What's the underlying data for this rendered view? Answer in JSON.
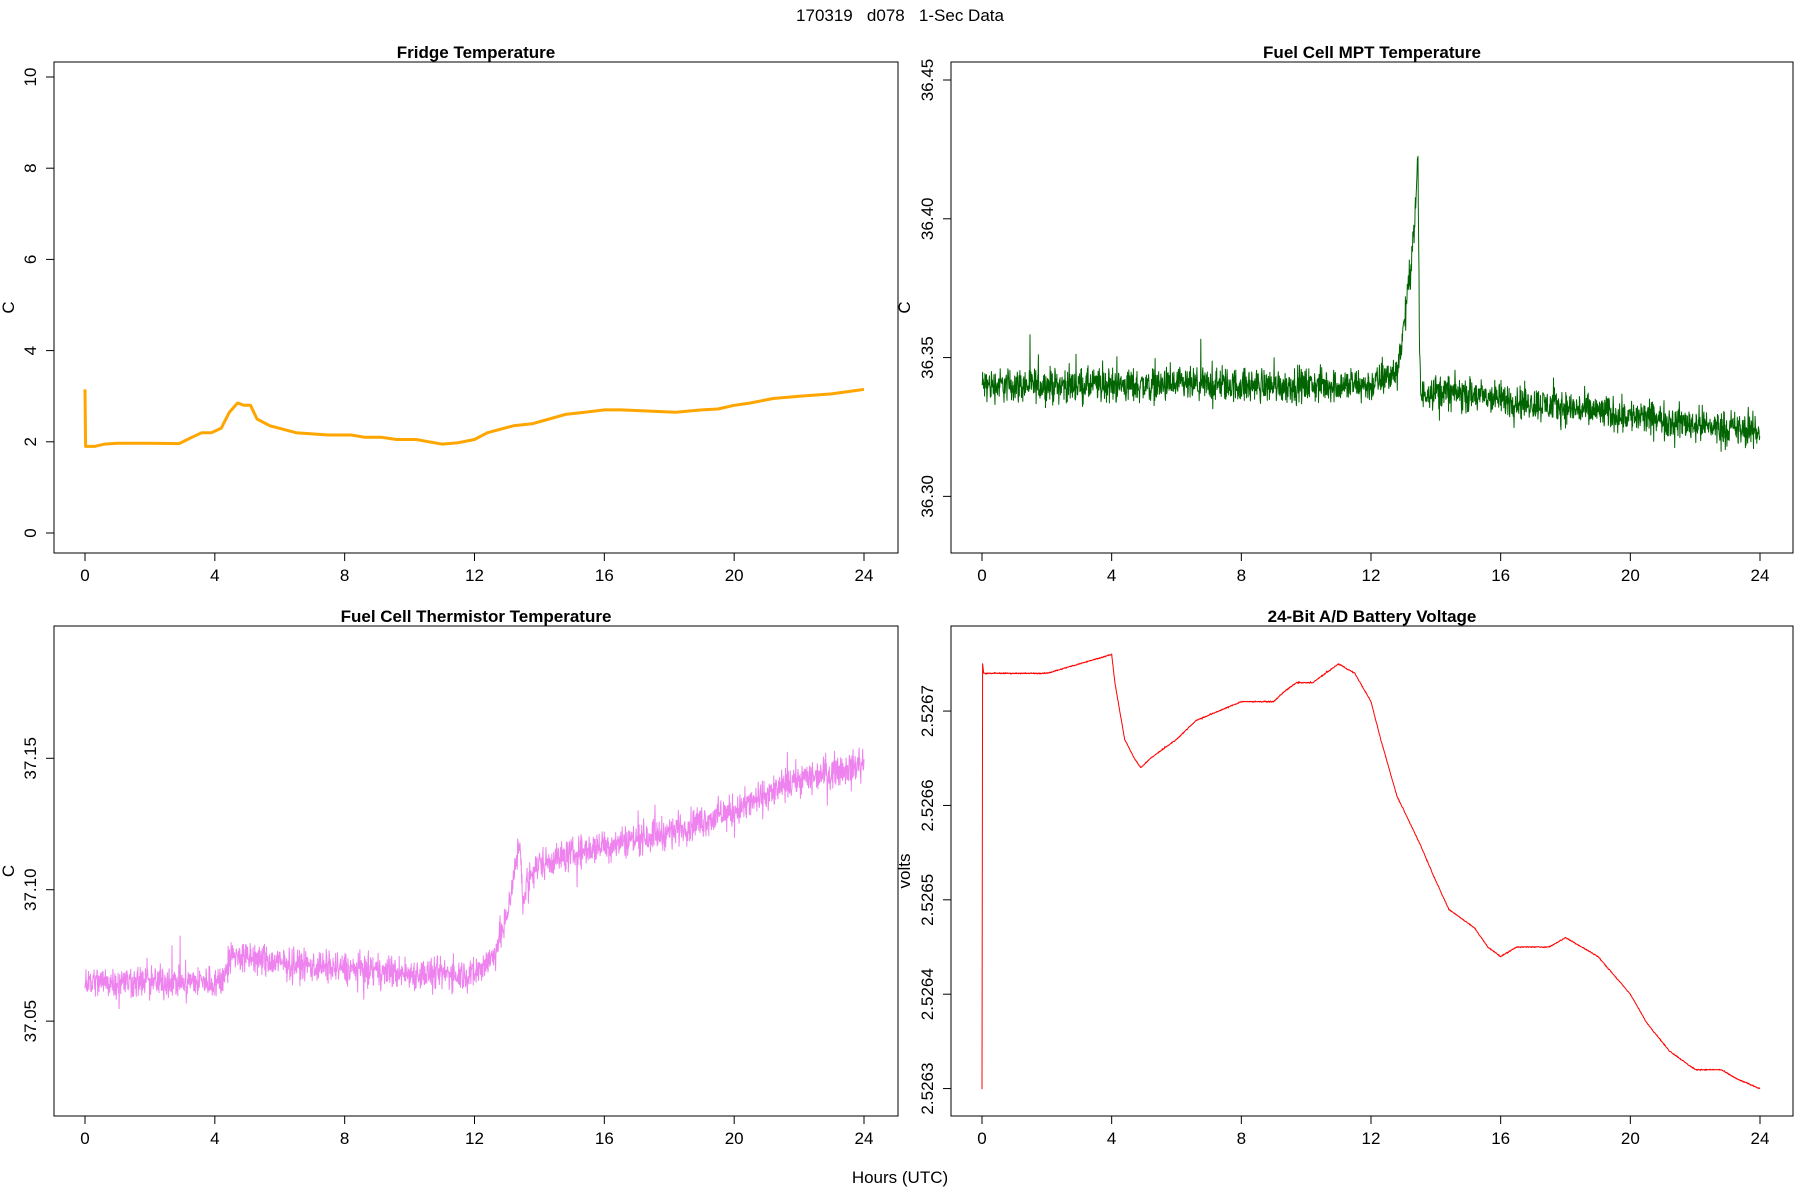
{
  "page_title": "170319   d078   1-Sec Data",
  "x_axis_label": "Hours (UTC)",
  "chart_data": [
    {
      "type": "line",
      "title": "Fridge Temperature",
      "ylabel": "C",
      "xlabel": "",
      "xlim": [
        0,
        24
      ],
      "ylim": [
        0,
        10
      ],
      "x_ticks": [
        0,
        4,
        8,
        12,
        16,
        20,
        24
      ],
      "y_ticks": [
        "0",
        "2",
        "4",
        "6",
        "8",
        "10"
      ],
      "y_tick_values": [
        0,
        2,
        4,
        6,
        8,
        10
      ],
      "color": "#FFA500",
      "series": [
        {
          "x": [
            0,
            0.02,
            0.04,
            0.3,
            0.6,
            1,
            2,
            2.9,
            3.3,
            3.6,
            3.9,
            4.2,
            4.45,
            4.7,
            4.9,
            5.1,
            5.3,
            5.7,
            6.5,
            7.5,
            8.2,
            8.6,
            9.1,
            9.6,
            10.2,
            10.6,
            11,
            11.5,
            12,
            12.4,
            13.2,
            13.8,
            14.3,
            14.8,
            15.4,
            16,
            16.5,
            17.5,
            18.2,
            19,
            19.5,
            20,
            20.5,
            21.2,
            22,
            23,
            23.5,
            24
          ],
          "y": [
            3.15,
            1.9,
            1.9,
            1.9,
            1.95,
            1.97,
            1.97,
            1.96,
            2.1,
            2.2,
            2.2,
            2.3,
            2.65,
            2.85,
            2.8,
            2.8,
            2.5,
            2.35,
            2.2,
            2.15,
            2.15,
            2.1,
            2.1,
            2.05,
            2.05,
            2.0,
            1.95,
            1.98,
            2.05,
            2.2,
            2.35,
            2.4,
            2.5,
            2.6,
            2.65,
            2.7,
            2.7,
            2.67,
            2.65,
            2.7,
            2.72,
            2.8,
            2.85,
            2.95,
            3.0,
            3.05,
            3.1,
            3.15
          ]
        }
      ],
      "noise": 0
    },
    {
      "type": "line",
      "title": "Fuel Cell MPT Temperature",
      "ylabel": "C",
      "xlabel": "",
      "xlim": [
        0,
        24
      ],
      "ylim": [
        36.285,
        36.45
      ],
      "x_ticks": [
        0,
        4,
        8,
        12,
        16,
        20,
        24
      ],
      "y_ticks": [
        "36.30",
        "36.35",
        "36.40",
        "36.45"
      ],
      "y_tick_values": [
        36.3,
        36.35,
        36.4,
        36.45
      ],
      "color": "#006400",
      "series": [
        {
          "x": [
            0,
            2,
            4,
            6,
            8,
            10,
            12,
            12.8,
            13.0,
            13.2,
            13.35,
            13.45,
            13.5,
            13.55,
            13.7,
            14,
            16,
            18,
            20,
            22,
            24
          ],
          "y": [
            36.34,
            36.34,
            36.34,
            36.34,
            36.34,
            36.34,
            36.34,
            36.345,
            36.36,
            36.38,
            36.4,
            36.42,
            36.35,
            36.335,
            36.338,
            36.338,
            36.335,
            36.332,
            36.329,
            36.326,
            36.323
          ]
        }
      ],
      "noise": 0.009
    },
    {
      "type": "line",
      "title": "Fuel Cell Thermistor Temperature",
      "ylabel": "C",
      "xlabel": "",
      "xlim": [
        0,
        24
      ],
      "ylim": [
        37.02,
        37.195
      ],
      "x_ticks": [
        0,
        4,
        8,
        12,
        16,
        20,
        24
      ],
      "y_ticks": [
        "37.05",
        "37.10",
        "37.15"
      ],
      "y_tick_values": [
        37.05,
        37.1,
        37.15
      ],
      "color": "#EE82EE",
      "series": [
        {
          "x": [
            0,
            1,
            2,
            3,
            4.2,
            4.5,
            6,
            8,
            10,
            12,
            12.6,
            13.0,
            13.2,
            13.4,
            13.5,
            13.7,
            14,
            16,
            18,
            20,
            22,
            24
          ],
          "y": [
            37.065,
            37.065,
            37.065,
            37.065,
            37.065,
            37.075,
            37.072,
            37.07,
            37.068,
            37.068,
            37.075,
            37.09,
            37.105,
            37.118,
            37.095,
            37.105,
            37.11,
            37.117,
            37.122,
            37.13,
            37.142,
            37.148
          ]
        }
      ],
      "noise": 0.009
    },
    {
      "type": "line",
      "title": "24-Bit A/D Battery Voltage",
      "ylabel": "volts",
      "xlabel": "",
      "xlim": [
        0,
        24
      ],
      "ylim": [
        2.52629,
        2.52677
      ],
      "x_ticks": [
        0,
        4,
        8,
        12,
        16,
        20,
        24
      ],
      "y_ticks": [
        "2.5263",
        "2.5264",
        "2.5265",
        "2.5266",
        "2.5267"
      ],
      "y_tick_values": [
        2.5263,
        2.5264,
        2.5265,
        2.5266,
        2.5267
      ],
      "color": "#FF0000",
      "series": [
        {
          "x": [
            0,
            0.02,
            0.05,
            1,
            2,
            3,
            4,
            4.1,
            4.4,
            4.7,
            4.9,
            5.2,
            6,
            6.6,
            7.3,
            8,
            9,
            9.3,
            9.7,
            10.2,
            10.6,
            11,
            11.5,
            12,
            12.3,
            12.8,
            13.5,
            14,
            14.4,
            14.8,
            15.2,
            15.6,
            16,
            16.5,
            17.5,
            18,
            18.5,
            19,
            19.5,
            20,
            20.5,
            21.2,
            22,
            22.8,
            23.3,
            24
          ],
          "y": [
            2.5263,
            2.52675,
            2.52674,
            2.52674,
            2.52674,
            2.52675,
            2.52676,
            2.52673,
            2.52667,
            2.52665,
            2.52664,
            2.52665,
            2.52667,
            2.52669,
            2.5267,
            2.52671,
            2.52671,
            2.52672,
            2.52673,
            2.52673,
            2.52674,
            2.52675,
            2.52674,
            2.52671,
            2.52667,
            2.52661,
            2.52656,
            2.52652,
            2.52649,
            2.52648,
            2.52647,
            2.52645,
            2.52644,
            2.52645,
            2.52645,
            2.52646,
            2.52645,
            2.52644,
            2.52642,
            2.5264,
            2.52637,
            2.52634,
            2.52632,
            2.52632,
            2.52631,
            2.5263
          ]
        }
      ],
      "noise": 9e-07
    }
  ]
}
